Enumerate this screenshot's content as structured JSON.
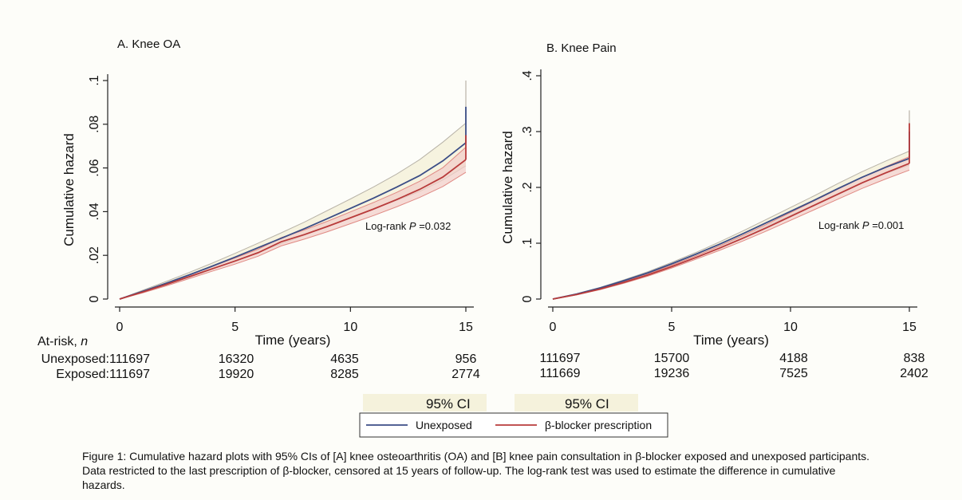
{
  "chart_data": [
    {
      "type": "line",
      "title": "A. Knee OA",
      "xlabel": "Time (years)",
      "ylabel": "Cumulative hazard",
      "xlim": [
        0,
        15
      ],
      "ylim": [
        0,
        0.1
      ],
      "xticks": [
        0,
        5,
        10,
        15
      ],
      "xtick_labels": [
        "0",
        "5",
        "10",
        "15"
      ],
      "yticks": [
        0,
        0.02,
        0.04,
        0.06,
        0.08,
        0.1
      ],
      "ytick_labels": [
        "0",
        ".02",
        ".04",
        ".06",
        ".08",
        ".1"
      ],
      "annotation": {
        "prefix": "Log-rank ",
        "italic": "P",
        "suffix": " =0.032"
      },
      "x": [
        0,
        1,
        2,
        3,
        4,
        5,
        6,
        7,
        8,
        9,
        10,
        11,
        12,
        13,
        14,
        15
      ],
      "series": [
        {
          "name": "Unexposed",
          "color": "#3b4d86",
          "values": [
            0,
            0.0035,
            0.0072,
            0.011,
            0.015,
            0.0192,
            0.0235,
            0.0278,
            0.0322,
            0.0368,
            0.0415,
            0.0462,
            0.0512,
            0.0565,
            0.0632,
            0.0715
          ],
          "ci_lower": [
            0,
            0.003,
            0.0064,
            0.0099,
            0.0136,
            0.0175,
            0.0214,
            0.0253,
            0.0292,
            0.0332,
            0.0372,
            0.0412,
            0.0452,
            0.0492,
            0.0545,
            0.061
          ],
          "ci_upper": [
            0,
            0.004,
            0.008,
            0.0121,
            0.0164,
            0.0209,
            0.0256,
            0.0303,
            0.0352,
            0.0405,
            0.0458,
            0.0513,
            0.0572,
            0.0638,
            0.0718,
            0.0805
          ]
        },
        {
          "name": "β-blocker prescription",
          "color": "#b83b3b",
          "values": [
            0,
            0.0032,
            0.0066,
            0.0102,
            0.0138,
            0.0174,
            0.0212,
            0.0262,
            0.0295,
            0.0332,
            0.0372,
            0.0412,
            0.0455,
            0.0502,
            0.0558,
            0.0638
          ],
          "ci_lower": [
            0,
            0.0028,
            0.006,
            0.0093,
            0.0127,
            0.016,
            0.0196,
            0.0243,
            0.0274,
            0.0308,
            0.0345,
            0.0382,
            0.0422,
            0.0465,
            0.0515,
            0.058
          ],
          "ci_upper": [
            0,
            0.0036,
            0.0072,
            0.0111,
            0.0149,
            0.0188,
            0.0228,
            0.0281,
            0.0316,
            0.0356,
            0.0399,
            0.0442,
            0.0488,
            0.0539,
            0.0601,
            0.0695
          ]
        }
      ],
      "final_jump": {
        "unexposed": 0.088,
        "exposed": 0.075,
        "ci_upper_max": 0.1
      },
      "at_risk": {
        "header": "At-risk, ",
        "header_italic": "n",
        "row_labels": [
          "Unexposed:",
          "Exposed:"
        ],
        "unexposed": [
          "111697",
          "16320",
          "4635",
          "956"
        ],
        "exposed": [
          "111697",
          "19920",
          "8285",
          "2774"
        ]
      }
    },
    {
      "type": "line",
      "title": "B. Knee Pain",
      "xlabel": "Time (years)",
      "ylabel": "Cumulative hazard",
      "xlim": [
        0,
        15
      ],
      "ylim": [
        0,
        0.4
      ],
      "xticks": [
        0,
        5,
        10,
        15
      ],
      "xtick_labels": [
        "0",
        "5",
        "10",
        "15"
      ],
      "yticks": [
        0,
        0.1,
        0.2,
        0.3,
        0.4
      ],
      "ytick_labels": [
        "0",
        ".1",
        ".2",
        ".3",
        ".4"
      ],
      "annotation": {
        "prefix": "Log-rank ",
        "italic": "P",
        "suffix": " =0.001"
      },
      "x": [
        0,
        1,
        2,
        3,
        4,
        5,
        6,
        7,
        8,
        9,
        10,
        11,
        12,
        13,
        14,
        15
      ],
      "series": [
        {
          "name": "Unexposed",
          "color": "#3b4d86",
          "values": [
            0,
            0.009,
            0.02,
            0.033,
            0.047,
            0.063,
            0.08,
            0.098,
            0.117,
            0.137,
            0.157,
            0.177,
            0.198,
            0.218,
            0.236,
            0.252
          ],
          "ci_lower": [
            0,
            0.0085,
            0.019,
            0.0315,
            0.045,
            0.0605,
            0.077,
            0.094,
            0.112,
            0.131,
            0.15,
            0.169,
            0.189,
            0.208,
            0.225,
            0.24
          ],
          "ci_upper": [
            0,
            0.0095,
            0.021,
            0.0345,
            0.049,
            0.0655,
            0.083,
            0.102,
            0.122,
            0.143,
            0.164,
            0.185,
            0.207,
            0.228,
            0.247,
            0.265
          ]
        },
        {
          "name": "β-blocker prescription",
          "color": "#b83b3b",
          "values": [
            0,
            0.008,
            0.018,
            0.03,
            0.043,
            0.058,
            0.074,
            0.091,
            0.109,
            0.128,
            0.148,
            0.168,
            0.188,
            0.208,
            0.226,
            0.243
          ],
          "ci_lower": [
            0,
            0.0075,
            0.017,
            0.0285,
            0.041,
            0.0555,
            0.071,
            0.087,
            0.104,
            0.122,
            0.141,
            0.16,
            0.179,
            0.198,
            0.215,
            0.231
          ],
          "ci_upper": [
            0,
            0.0085,
            0.019,
            0.0315,
            0.045,
            0.0605,
            0.077,
            0.095,
            0.114,
            0.134,
            0.155,
            0.176,
            0.197,
            0.218,
            0.237,
            0.255
          ]
        }
      ],
      "final_jump": {
        "unexposed": 0.3,
        "exposed": 0.315,
        "ci_upper_max": 0.338
      },
      "at_risk": {
        "unexposed": [
          "111697",
          "15700",
          "4188",
          "838"
        ],
        "exposed": [
          "111669",
          "19236",
          "7525",
          "2402"
        ]
      }
    }
  ],
  "legend": {
    "ci_labels": [
      "95% CI",
      "95% CI"
    ],
    "items": [
      {
        "label": "Unexposed",
        "color": "#3b4d86"
      },
      {
        "label": "β-blocker prescription",
        "color": "#b83b3b"
      }
    ]
  },
  "colors": {
    "unexposed_ci_fill": "#f3efd6",
    "unexposed_ci_line": "#b8b3a8",
    "exposed_ci_fill": "#f2cfc9",
    "exposed_ci_line": "#e08a84",
    "ci_swatch": "#f5f2dc"
  },
  "caption": "Figure 1: Cumulative hazard plots with 95% CIs of  [A] knee osteoarthritis (OA) and [B] knee pain consultation in β-blocker exposed and unexposed participants. Data restricted to the last prescription of β-blocker, censored at 15 years of follow-up. The log-rank test was used to estimate the difference in cumulative hazards."
}
